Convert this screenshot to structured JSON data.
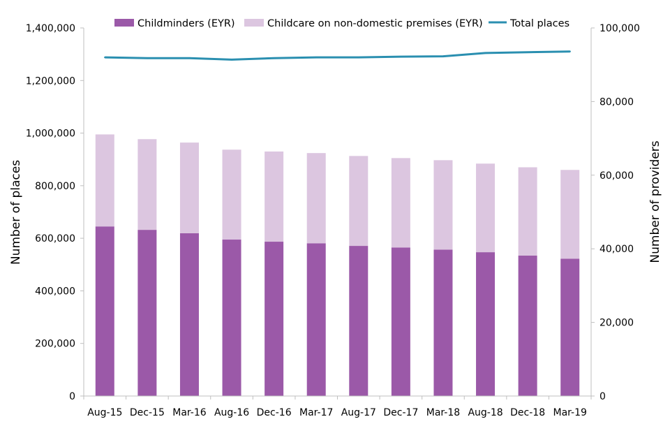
{
  "chart_data": {
    "type": "bar",
    "stacked": true,
    "categories": [
      "Aug-15",
      "Dec-15",
      "Mar-16",
      "Aug-16",
      "Dec-16",
      "Mar-17",
      "Aug-17",
      "Dec-17",
      "Mar-18",
      "Aug-18",
      "Dec-18",
      "Mar-19"
    ],
    "series": [
      {
        "name": "Childminders (EYR)",
        "axis": "left",
        "color": "#9b59a8",
        "values": [
          645000,
          632000,
          619000,
          595000,
          587000,
          581000,
          571000,
          565000,
          557000,
          547000,
          534000,
          522000
        ]
      },
      {
        "name": "Childcare on non-domestic premises (EYR)",
        "axis": "left",
        "color": "#dcc6e0",
        "values": [
          350000,
          345000,
          345000,
          342000,
          343000,
          343000,
          342000,
          340000,
          340000,
          337000,
          336000,
          338000
        ]
      }
    ],
    "line_series": {
      "name": "Total places",
      "axis": "right",
      "color": "#2a8fb0",
      "values": [
        92000,
        91800,
        91800,
        91400,
        91800,
        92000,
        92000,
        92200,
        92300,
        93200,
        93400,
        93600
      ]
    },
    "left_axis": {
      "label": "Number of places",
      "min": 0,
      "max": 1400000,
      "step": 200000,
      "ticks": [
        "0",
        "200,000",
        "400,000",
        "600,000",
        "800,000",
        "1,000,000",
        "1,200,000",
        "1,400,000"
      ]
    },
    "right_axis": {
      "label": "Number of providers",
      "min": 0,
      "max": 100000,
      "step": 20000,
      "ticks": [
        "0",
        "20,000",
        "40,000",
        "60,000",
        "80,000",
        "100,000"
      ]
    },
    "legend_position": "top",
    "grid": false
  }
}
